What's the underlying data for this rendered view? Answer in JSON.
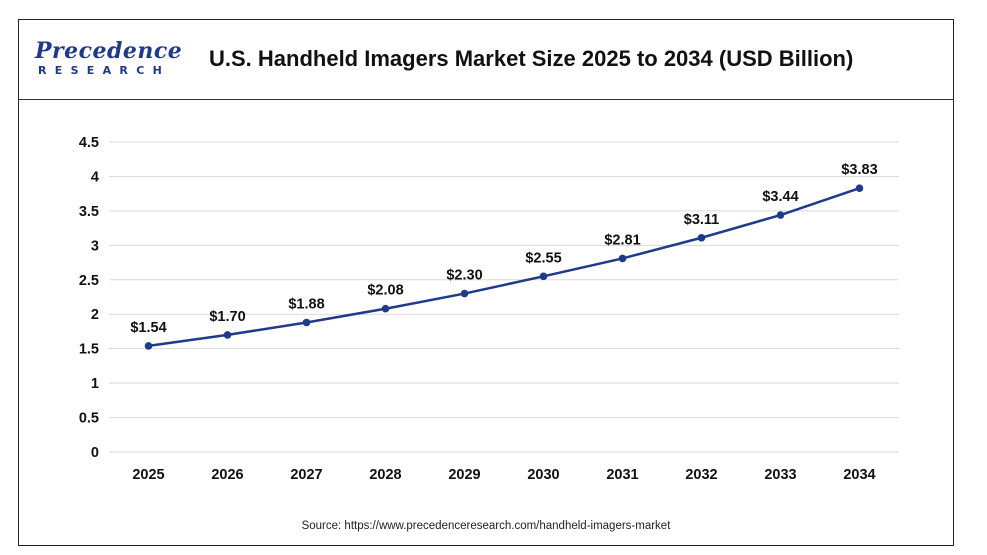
{
  "logo": {
    "main": "Precedence",
    "sub": "RESEARCH"
  },
  "source": "Source: https://www.precedenceresearch.com/handheld-imagers-market",
  "chart_data": {
    "type": "line",
    "title": "U.S. Handheld Imagers Market Size 2025 to 2034 (USD Billion)",
    "xlabel": "",
    "ylabel": "",
    "categories": [
      "2025",
      "2026",
      "2027",
      "2028",
      "2029",
      "2030",
      "2031",
      "2032",
      "2033",
      "2034"
    ],
    "series": [
      {
        "values": [
          1.54,
          1.7,
          1.88,
          2.08,
          2.3,
          2.55,
          2.81,
          3.11,
          3.44,
          3.83
        ],
        "labels": [
          "$1.54",
          "$1.70",
          "$1.88",
          "$2.08",
          "$2.30",
          "$2.55",
          "$2.81",
          "$3.11",
          "$3.44",
          "$3.83"
        ]
      }
    ],
    "ylim": [
      0,
      4.5
    ],
    "yticks": [
      "0",
      "0.5",
      "1",
      "1.5",
      "2",
      "2.5",
      "3",
      "3.5",
      "4",
      "4.5"
    ],
    "grid": true,
    "legend": "none",
    "line_color": "#1f3a8a",
    "grid_color": "#d9d9d9"
  }
}
